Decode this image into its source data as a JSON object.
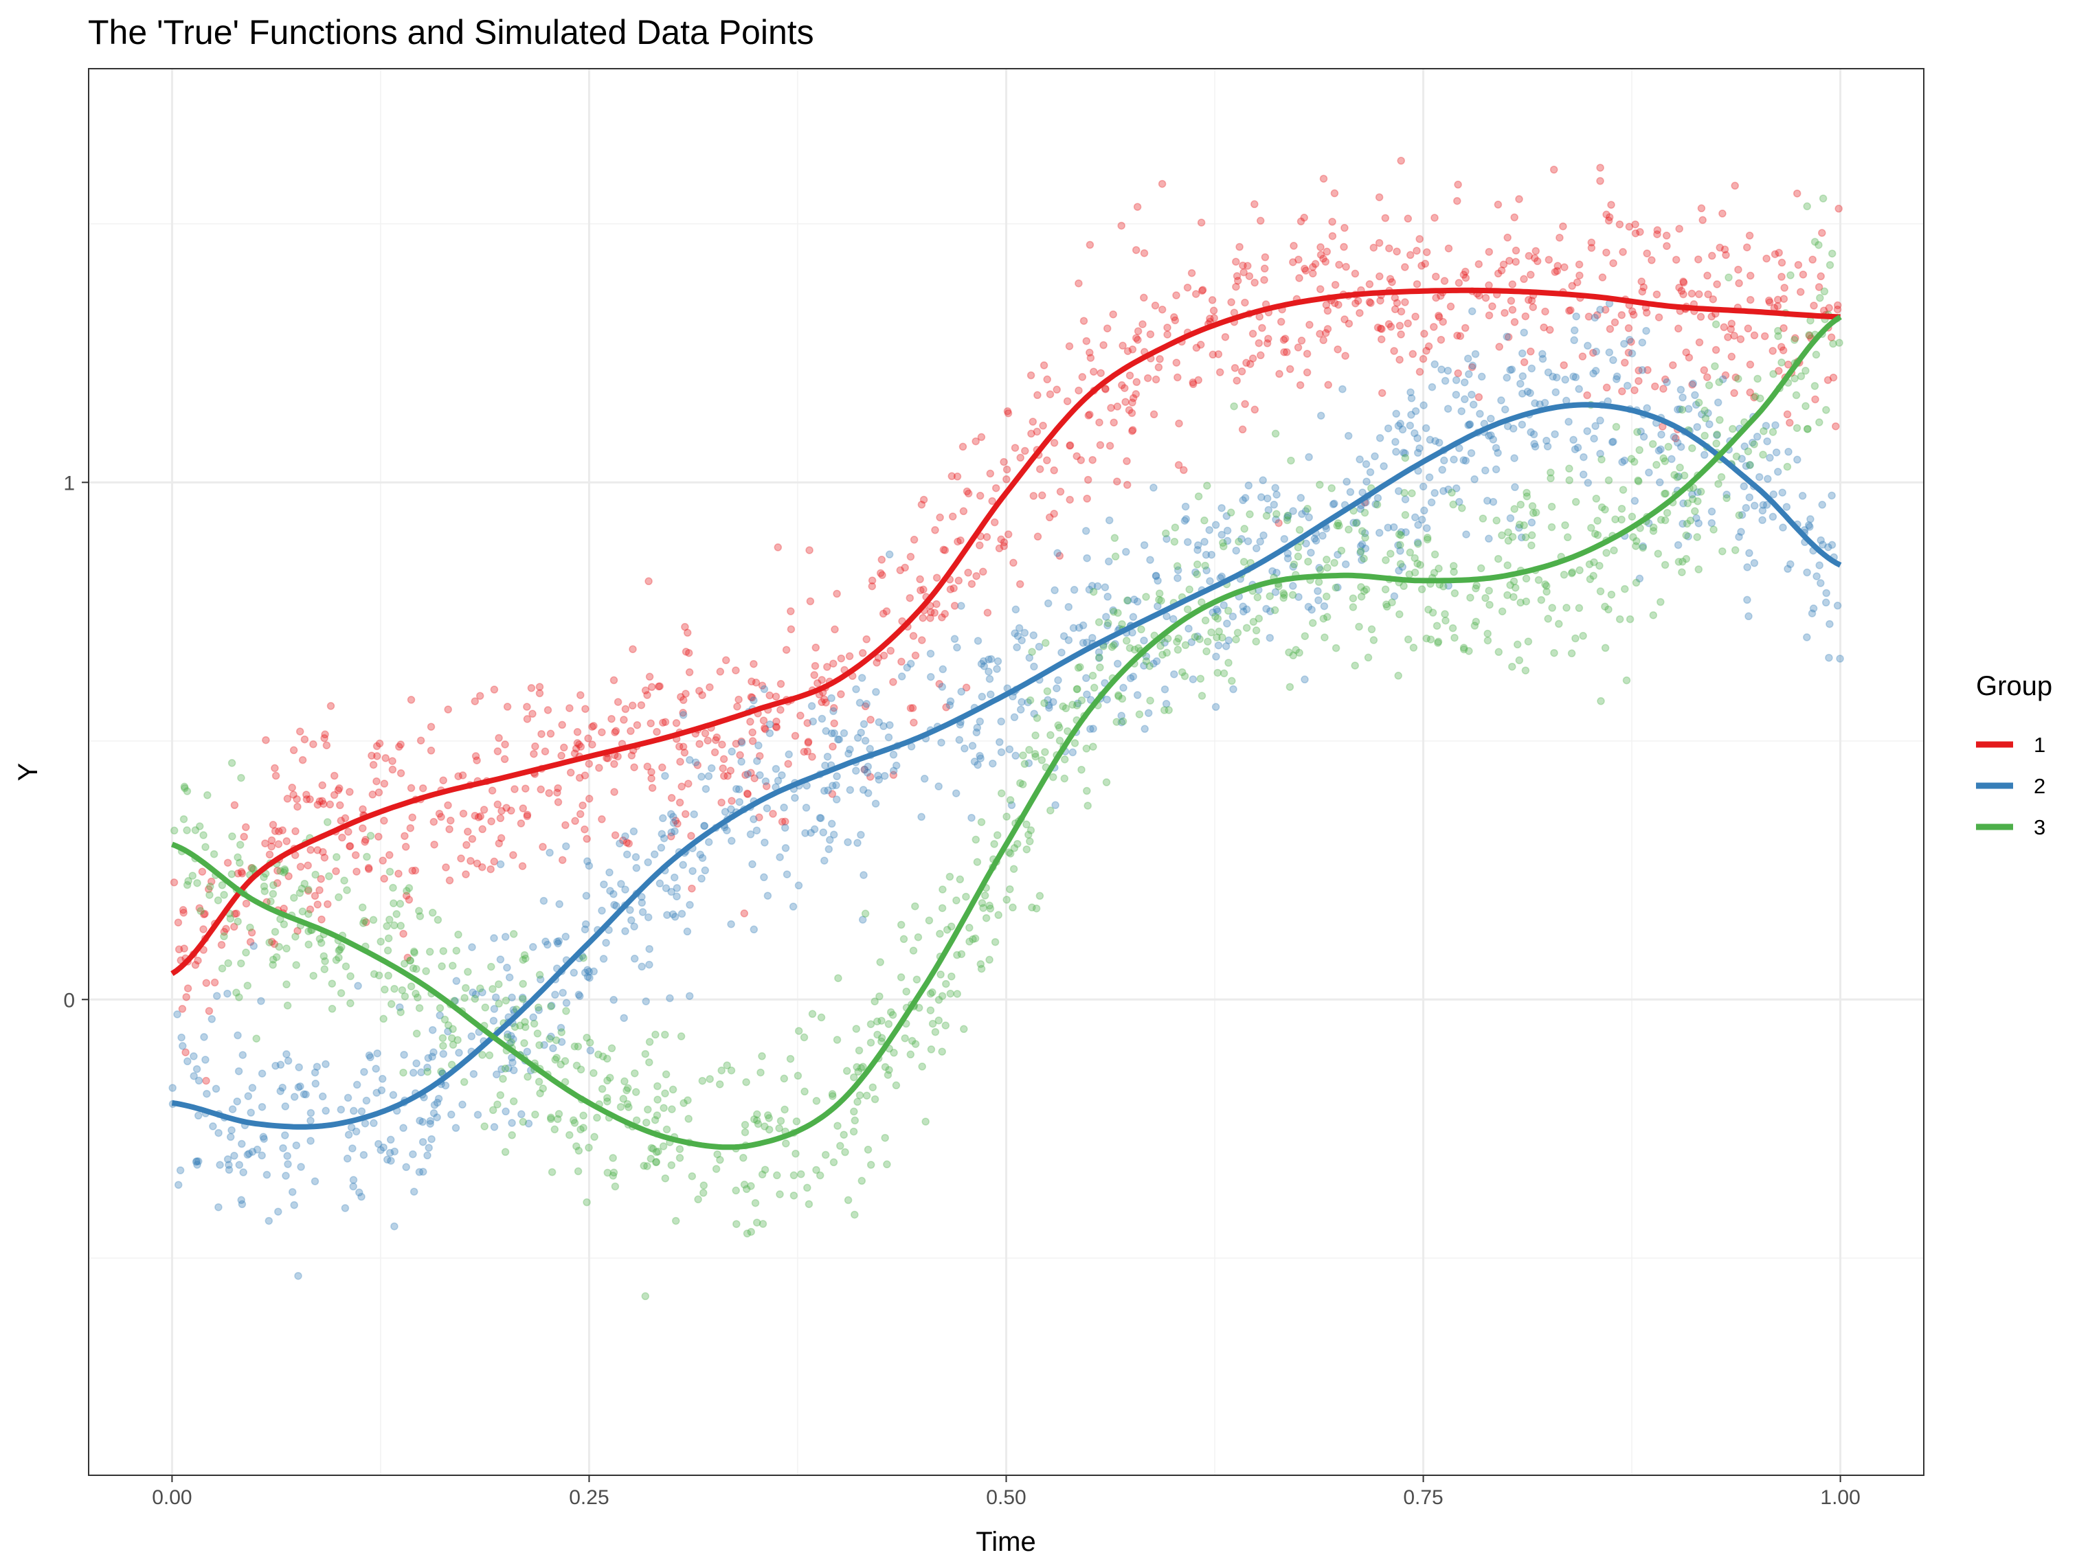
{
  "chart_data": {
    "type": "line",
    "title": "The 'True' Functions and Simulated Data Points",
    "xlabel": "Time",
    "ylabel": "Y",
    "xlim": [
      -0.05,
      1.05
    ],
    "ylim": [
      -0.92,
      1.8
    ],
    "x_ticks": [
      0.0,
      0.25,
      0.5,
      0.75,
      1.0
    ],
    "x_tick_labels": [
      "0.00",
      "0.25",
      "0.50",
      "0.75",
      "1.00"
    ],
    "x_minor_ticks": [
      0.125,
      0.375,
      0.625,
      0.875
    ],
    "y_ticks": [
      0,
      1
    ],
    "y_tick_labels": [
      "0",
      "1"
    ],
    "y_minor_ticks": [
      -0.5,
      0.5,
      1.5
    ],
    "grid": true,
    "legend_title": "Group",
    "legend_position": "right",
    "x": [
      0.0,
      0.05,
      0.1,
      0.15,
      0.2,
      0.25,
      0.3,
      0.35,
      0.4,
      0.45,
      0.5,
      0.55,
      0.6,
      0.65,
      0.7,
      0.75,
      0.8,
      0.85,
      0.9,
      0.95,
      1.0
    ],
    "series": [
      {
        "name": "1",
        "color": "#E41A1C",
        "values": [
          0.05,
          0.24,
          0.33,
          0.39,
          0.43,
          0.47,
          0.51,
          0.56,
          0.62,
          0.76,
          0.98,
          1.17,
          1.27,
          1.33,
          1.36,
          1.37,
          1.37,
          1.36,
          1.34,
          1.33,
          1.32
        ]
      },
      {
        "name": "2",
        "color": "#377EB8",
        "values": [
          -0.2,
          -0.24,
          -0.24,
          -0.18,
          -0.05,
          0.11,
          0.27,
          0.38,
          0.45,
          0.51,
          0.59,
          0.68,
          0.76,
          0.84,
          0.94,
          1.04,
          1.12,
          1.15,
          1.11,
          0.99,
          0.84
        ]
      },
      {
        "name": "3",
        "color": "#4DAF4A",
        "values": [
          0.3,
          0.19,
          0.12,
          0.03,
          -0.09,
          -0.2,
          -0.27,
          -0.28,
          -0.2,
          0.02,
          0.3,
          0.56,
          0.72,
          0.8,
          0.82,
          0.81,
          0.82,
          0.87,
          0.97,
          1.13,
          1.32
        ]
      }
    ],
    "scatter_note_values": {
      "points_per_series": 1100,
      "point_alpha": 0.35,
      "noise_sd": 0.1
    }
  }
}
